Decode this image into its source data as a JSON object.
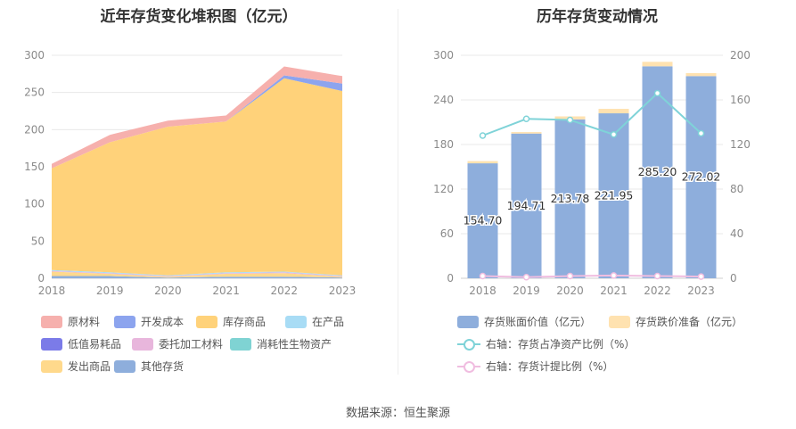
{
  "source": "数据来源：恒生聚源",
  "chart_data": [
    {
      "type": "area",
      "stacked": true,
      "title": "近年存货变化堆积图（亿元）",
      "categories": [
        "2018",
        "2019",
        "2020",
        "2021",
        "2022",
        "2023"
      ],
      "ylim": [
        0,
        300
      ],
      "yticks": [
        "0",
        "50",
        "100",
        "150",
        "200",
        "250",
        "300"
      ],
      "grid": true,
      "legend_placement": "bottom",
      "series": [
        {
          "name": "其他存货",
          "color": "#8eaedc",
          "values": [
            3,
            3,
            1,
            2,
            2,
            1
          ]
        },
        {
          "name": "发出商品",
          "color": "#ffd98c",
          "values": [
            6,
            3,
            1,
            4,
            5,
            1
          ]
        },
        {
          "name": "消耗性生物资产",
          "color": "#7fd3d3",
          "values": [
            0,
            0,
            0,
            0,
            0,
            0
          ]
        },
        {
          "name": "委托加工材料",
          "color": "#e8b6dc",
          "values": [
            1,
            1,
            1,
            1,
            1,
            1
          ]
        },
        {
          "name": "低值易耗品",
          "color": "#7b7be8",
          "values": [
            0,
            0,
            0,
            0,
            0,
            0
          ]
        },
        {
          "name": "在产品",
          "color": "#a8dcf5",
          "values": [
            1,
            1,
            1,
            1,
            1,
            1
          ]
        },
        {
          "name": "库存商品",
          "color": "#ffd27a",
          "values": [
            137,
            175,
            200,
            203,
            260,
            248
          ]
        },
        {
          "name": "开发成本",
          "color": "#8ca4ee",
          "values": [
            0,
            0,
            0,
            0,
            4,
            10
          ]
        },
        {
          "name": "原材料",
          "color": "#f6b0ad",
          "values": [
            6,
            10,
            8,
            8,
            12,
            10
          ]
        }
      ]
    },
    {
      "type": "bar",
      "title": "历年存货变动情况",
      "categories": [
        "2018",
        "2019",
        "2020",
        "2021",
        "2022",
        "2023"
      ],
      "ylim_left": [
        0,
        300
      ],
      "yticks_left": [
        "0",
        "60",
        "120",
        "180",
        "240",
        "300"
      ],
      "ylim_right": [
        0,
        200
      ],
      "yticks_right": [
        "0",
        "40",
        "80",
        "120",
        "160",
        "200"
      ],
      "legend_placement": "bottom",
      "bars": [
        {
          "name": "存货账面价值（亿元）",
          "color": "#8eaedc",
          "values": [
            154.7,
            194.71,
            213.78,
            221.95,
            285.2,
            272.02
          ],
          "labels": [
            "154.70",
            "194.71",
            "213.78",
            "221.95",
            "285.20",
            "272.02"
          ]
        },
        {
          "name": "存货跌价准备（亿元）",
          "color": "#ffe2b0",
          "values": [
            3,
            2,
            4,
            6,
            6,
            4
          ]
        }
      ],
      "lines": [
        {
          "name": "右轴：存货占净资产比例（%）",
          "color": "#7fd3d8",
          "values": [
            128,
            143,
            142,
            129,
            166,
            130
          ]
        },
        {
          "name": "右轴：存货计提比例（%）",
          "color": "#f0bde0",
          "values": [
            2,
            1,
            2,
            2.5,
            2,
            1.5
          ]
        }
      ]
    }
  ]
}
